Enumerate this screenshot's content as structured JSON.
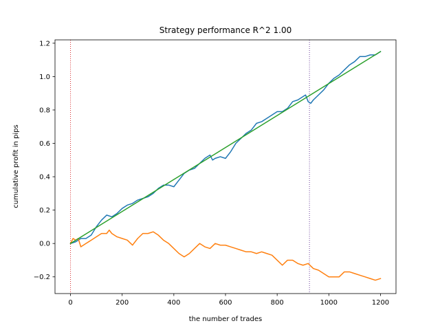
{
  "chart_data": {
    "type": "line",
    "title": "Strategy performance R^2 1.00",
    "xlabel": "the number of trades",
    "ylabel": "cumulative profit in pips",
    "xlim": [
      -60,
      1260
    ],
    "ylim": [
      -0.3,
      1.22
    ],
    "x_ticks": [
      0,
      200,
      400,
      600,
      800,
      1000,
      1200
    ],
    "x_tick_labels": [
      "0",
      "200",
      "400",
      "600",
      "800",
      "1000",
      "1200"
    ],
    "y_ticks": [
      -0.2,
      0.0,
      0.2,
      0.4,
      0.6,
      0.8,
      1.0,
      1.2
    ],
    "y_tick_labels": [
      "−0.2",
      "0.0",
      "0.2",
      "0.4",
      "0.6",
      "0.8",
      "1.0",
      "1.2"
    ],
    "grid": false,
    "vertical_lines": [
      {
        "x": 0,
        "color": "#d62728",
        "style": "dotted"
      },
      {
        "x": 925,
        "color": "#6a3d9a",
        "style": "dotted"
      }
    ],
    "series": [
      {
        "color": "#1f77b4",
        "points": [
          [
            0,
            0.0
          ],
          [
            20,
            0.01
          ],
          [
            40,
            0.03
          ],
          [
            60,
            0.03
          ],
          [
            80,
            0.05
          ],
          [
            100,
            0.1
          ],
          [
            120,
            0.14
          ],
          [
            140,
            0.17
          ],
          [
            160,
            0.16
          ],
          [
            180,
            0.18
          ],
          [
            200,
            0.21
          ],
          [
            220,
            0.23
          ],
          [
            240,
            0.24
          ],
          [
            260,
            0.26
          ],
          [
            280,
            0.27
          ],
          [
            300,
            0.28
          ],
          [
            320,
            0.3
          ],
          [
            340,
            0.33
          ],
          [
            360,
            0.35
          ],
          [
            380,
            0.35
          ],
          [
            400,
            0.34
          ],
          [
            420,
            0.38
          ],
          [
            440,
            0.42
          ],
          [
            460,
            0.44
          ],
          [
            480,
            0.45
          ],
          [
            500,
            0.48
          ],
          [
            520,
            0.51
          ],
          [
            540,
            0.53
          ],
          [
            550,
            0.5
          ],
          [
            560,
            0.51
          ],
          [
            580,
            0.52
          ],
          [
            600,
            0.51
          ],
          [
            620,
            0.55
          ],
          [
            640,
            0.6
          ],
          [
            660,
            0.63
          ],
          [
            680,
            0.66
          ],
          [
            700,
            0.68
          ],
          [
            720,
            0.72
          ],
          [
            740,
            0.73
          ],
          [
            760,
            0.75
          ],
          [
            780,
            0.77
          ],
          [
            800,
            0.79
          ],
          [
            820,
            0.79
          ],
          [
            840,
            0.81
          ],
          [
            850,
            0.83
          ],
          [
            860,
            0.85
          ],
          [
            880,
            0.86
          ],
          [
            900,
            0.88
          ],
          [
            910,
            0.89
          ],
          [
            920,
            0.85
          ],
          [
            930,
            0.84
          ],
          [
            940,
            0.86
          ],
          [
            960,
            0.89
          ],
          [
            980,
            0.92
          ],
          [
            1000,
            0.96
          ],
          [
            1020,
            0.99
          ],
          [
            1040,
            1.01
          ],
          [
            1060,
            1.04
          ],
          [
            1080,
            1.07
          ],
          [
            1100,
            1.09
          ],
          [
            1120,
            1.12
          ],
          [
            1140,
            1.12
          ],
          [
            1160,
            1.13
          ],
          [
            1180,
            1.13
          ],
          [
            1200,
            1.15
          ]
        ]
      },
      {
        "color": "#ff7f0e",
        "points": [
          [
            0,
            0.0
          ],
          [
            10,
            0.03
          ],
          [
            20,
            0.02
          ],
          [
            30,
            0.03
          ],
          [
            40,
            -0.02
          ],
          [
            60,
            0.0
          ],
          [
            80,
            0.02
          ],
          [
            100,
            0.04
          ],
          [
            120,
            0.06
          ],
          [
            140,
            0.06
          ],
          [
            150,
            0.08
          ],
          [
            160,
            0.06
          ],
          [
            180,
            0.04
          ],
          [
            200,
            0.03
          ],
          [
            220,
            0.02
          ],
          [
            240,
            -0.01
          ],
          [
            260,
            0.03
          ],
          [
            280,
            0.06
          ],
          [
            300,
            0.06
          ],
          [
            320,
            0.07
          ],
          [
            340,
            0.05
          ],
          [
            360,
            0.02
          ],
          [
            380,
            0.0
          ],
          [
            400,
            -0.03
          ],
          [
            420,
            -0.06
          ],
          [
            440,
            -0.08
          ],
          [
            460,
            -0.06
          ],
          [
            480,
            -0.03
          ],
          [
            500,
            0.0
          ],
          [
            520,
            -0.02
          ],
          [
            540,
            -0.03
          ],
          [
            560,
            0.0
          ],
          [
            580,
            -0.01
          ],
          [
            600,
            -0.01
          ],
          [
            620,
            -0.02
          ],
          [
            640,
            -0.03
          ],
          [
            660,
            -0.04
          ],
          [
            680,
            -0.05
          ],
          [
            700,
            -0.05
          ],
          [
            720,
            -0.06
          ],
          [
            740,
            -0.05
          ],
          [
            760,
            -0.06
          ],
          [
            780,
            -0.07
          ],
          [
            800,
            -0.1
          ],
          [
            820,
            -0.13
          ],
          [
            840,
            -0.1
          ],
          [
            860,
            -0.1
          ],
          [
            880,
            -0.12
          ],
          [
            900,
            -0.13
          ],
          [
            920,
            -0.12
          ],
          [
            940,
            -0.15
          ],
          [
            960,
            -0.16
          ],
          [
            980,
            -0.18
          ],
          [
            1000,
            -0.2
          ],
          [
            1020,
            -0.2
          ],
          [
            1040,
            -0.2
          ],
          [
            1060,
            -0.17
          ],
          [
            1080,
            -0.17
          ],
          [
            1100,
            -0.18
          ],
          [
            1120,
            -0.19
          ],
          [
            1140,
            -0.2
          ],
          [
            1160,
            -0.21
          ],
          [
            1180,
            -0.22
          ],
          [
            1200,
            -0.21
          ]
        ]
      },
      {
        "color": "#2ca02c",
        "points": [
          [
            0,
            0.0
          ],
          [
            1200,
            1.15
          ]
        ]
      }
    ]
  }
}
